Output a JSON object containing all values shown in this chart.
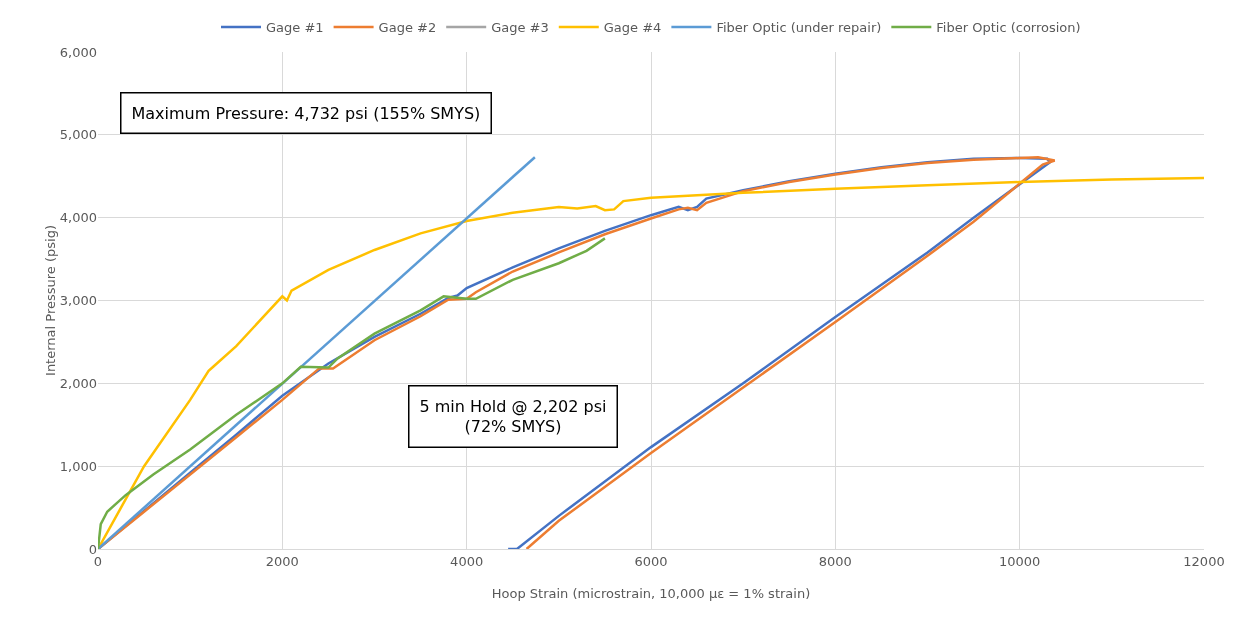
{
  "chart_data": {
    "type": "line",
    "xlabel": "Hoop Strain (microstrain, 10,000 με = 1% strain)",
    "ylabel": "Internal Pressure (psig)",
    "xlim": [
      0,
      12000
    ],
    "ylim": [
      0,
      6000
    ],
    "xticks": [
      0,
      2000,
      4000,
      6000,
      8000,
      10000,
      12000
    ],
    "yticks": [
      0,
      {
        "value": 1000,
        "label": "1,000"
      },
      {
        "value": 2000,
        "label": "2,000"
      },
      {
        "value": 3000,
        "label": "3,000"
      },
      {
        "value": 4000,
        "label": "4,000"
      },
      {
        "value": 5000,
        "label": "5,000"
      },
      {
        "value": 6000,
        "label": "6,000"
      }
    ],
    "grid": true,
    "legend": "top",
    "marker": "none",
    "line_style": "solid",
    "annotations": [
      "Maximum Pressure: 4,732 psi (155% SMYS)",
      "5 min Hold @ 2,202 psi\n(72% SMYS)"
    ],
    "series": [
      {
        "name": "Gage #1",
        "color": "#4472c4",
        "x": [
          0,
          500,
          1000,
          1500,
          2000,
          2500,
          3000,
          3500,
          3800,
          3900,
          4000,
          4500,
          5000,
          5500,
          6000,
          6300,
          6400,
          6500,
          6600,
          7000,
          7500,
          8000,
          8500,
          9000,
          9500,
          10000,
          10300,
          10329,
          9500,
          9000,
          8000,
          7000,
          6000,
          5000,
          4546,
          4450
        ],
        "values": [
          0,
          460,
          920,
          1380,
          1850,
          2240,
          2560,
          2840,
          3030,
          3060,
          3150,
          3400,
          3630,
          3840,
          4030,
          4130,
          4090,
          4130,
          4230,
          4330,
          4440,
          4530,
          4610,
          4670,
          4710,
          4720,
          4710,
          4670,
          4000,
          3580,
          2800,
          2000,
          1230,
          400,
          0,
          0
        ]
      },
      {
        "name": "Gage #2",
        "color": "#ed7d31",
        "x": [
          0,
          500,
          1000,
          1500,
          2000,
          2400,
          2550,
          3000,
          3500,
          3800,
          4000,
          4100,
          4500,
          5000,
          5500,
          6000,
          6300,
          6400,
          6500,
          6600,
          7000,
          7500,
          8000,
          8500,
          9000,
          9500,
          10000,
          10200,
          10380,
          10250,
          9500,
          9000,
          8000,
          7000,
          6000,
          5000,
          4650
        ],
        "values": [
          0,
          450,
          900,
          1350,
          1800,
          2180,
          2180,
          2520,
          2810,
          3010,
          3020,
          3100,
          3350,
          3580,
          3800,
          3990,
          4100,
          4120,
          4090,
          4180,
          4320,
          4430,
          4520,
          4600,
          4660,
          4700,
          4720,
          4730,
          4690,
          4640,
          3950,
          3540,
          2740,
          1950,
          1160,
          340,
          0
        ]
      },
      {
        "name": "Gage #3",
        "color": "#a5a5a5"
      },
      {
        "name": "Gage #4",
        "color": "#ffc000",
        "x": [
          0,
          200,
          500,
          1000,
          1200,
          1250,
          1500,
          2000,
          2050,
          2100,
          2500,
          3000,
          3500,
          4000,
          4500,
          5000,
          5200,
          5400,
          5500,
          5600,
          5700,
          6000,
          7000,
          8000,
          9000,
          10000,
          11000,
          12000
        ],
        "values": [
          0,
          400,
          1000,
          1800,
          2150,
          2200,
          2450,
          3050,
          3000,
          3120,
          3370,
          3610,
          3810,
          3960,
          4060,
          4130,
          4110,
          4140,
          4090,
          4100,
          4200,
          4240,
          4300,
          4350,
          4390,
          4430,
          4460,
          4480
        ]
      },
      {
        "name": "Fiber Optic (under repair)",
        "color": "#5b9bd5",
        "x": [
          0,
          4740
        ],
        "values": [
          0,
          4730
        ]
      },
      {
        "name": "Fiber Optic (corrosion)",
        "color": "#70ad47",
        "x": [
          0,
          30,
          100,
          300,
          600,
          1000,
          1500,
          2000,
          2200,
          2500,
          2600,
          3000,
          3500,
          3750,
          4000,
          4100,
          4500,
          5000,
          5300,
          5500
        ],
        "values": [
          0,
          300,
          450,
          650,
          900,
          1200,
          1620,
          2000,
          2200,
          2190,
          2300,
          2600,
          2880,
          3050,
          3020,
          3020,
          3250,
          3450,
          3600,
          3750
        ]
      }
    ]
  }
}
